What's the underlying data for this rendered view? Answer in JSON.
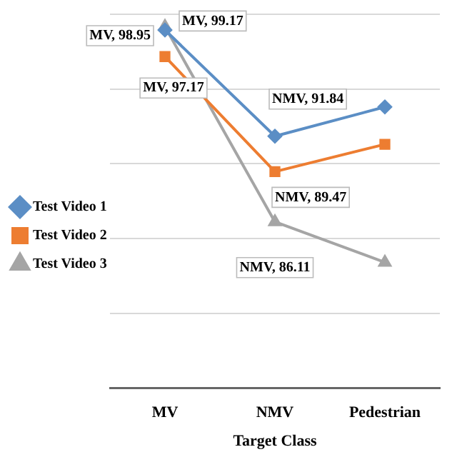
{
  "chart_data": {
    "type": "line",
    "xlabel": "Target Class",
    "categories": [
      "MV",
      "NMV",
      "Pedestrian"
    ],
    "series": [
      {
        "name": "Test Video 1",
        "color": "#5b8ec5",
        "marker": "diamond",
        "values": [
          98.95,
          91.84,
          93.8
        ],
        "value_labels": [
          "MV, 98.95",
          "NMV, 91.84",
          null
        ]
      },
      {
        "name": "Test Video 2",
        "color": "#ed7d31",
        "marker": "square",
        "values": [
          97.17,
          89.47,
          91.3
        ],
        "value_labels": [
          "MV, 97.17",
          "NMV, 89.47",
          null
        ]
      },
      {
        "name": "Test Video 3",
        "color": "#a5a5a5",
        "marker": "triangle",
        "values": [
          99.17,
          86.11,
          83.4
        ],
        "value_labels": [
          "MV, 99.17",
          "NMV, 86.11",
          null
        ]
      }
    ],
    "ylim": [
      75,
      100
    ],
    "yticks": [
      {
        "value": 75,
        "label": null
      },
      {
        "value": 80,
        "label": null
      },
      {
        "value": 85,
        "label": null
      },
      {
        "value": 90,
        "label": null
      },
      {
        "value": 95,
        "label": null
      },
      {
        "value": 100,
        "label": null
      }
    ],
    "tick_labels": "x",
    "grid": "y",
    "legend": "left",
    "line_style": "solid"
  }
}
